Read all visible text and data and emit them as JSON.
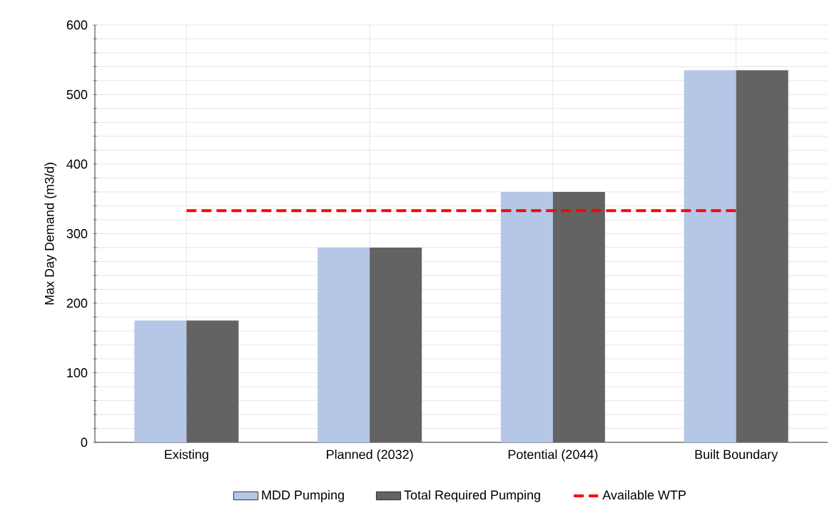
{
  "chart_data": {
    "type": "bar",
    "ylabel": "Max Day Demand (m3/d)",
    "categories": [
      "Existing",
      "Planned (2032)",
      "Potential (2044)",
      "Built Boundary"
    ],
    "series": [
      {
        "name": "MDD Pumping",
        "color": "#b4c7e7",
        "values": [
          175,
          280,
          360,
          535
        ]
      },
      {
        "name": "Total Required Pumping",
        "color": "#636363",
        "values": [
          175,
          280,
          360,
          535
        ]
      },
      {
        "name": "Available WTP",
        "color": "#ff0000",
        "type": "line",
        "line_style": "dashed",
        "values": [
          333,
          333,
          333,
          333
        ]
      }
    ],
    "ylim": [
      0,
      600
    ],
    "yticks": [
      0,
      {
        "value": 20,
        "label": null
      },
      {
        "value": 40,
        "label": null
      },
      {
        "value": 60,
        "label": null
      },
      {
        "value": 80,
        "label": null
      },
      100,
      {
        "value": 120,
        "label": null
      },
      {
        "value": 140,
        "label": null
      },
      {
        "value": 160,
        "label": null
      },
      {
        "value": 180,
        "label": null
      },
      200,
      {
        "value": 220,
        "label": null
      },
      {
        "value": 240,
        "label": null
      },
      {
        "value": 260,
        "label": null
      },
      {
        "value": 280,
        "label": null
      },
      300,
      {
        "value": 320,
        "label": null
      },
      {
        "value": 340,
        "label": null
      },
      {
        "value": 360,
        "label": null
      },
      {
        "value": 380,
        "label": null
      },
      400,
      {
        "value": 420,
        "label": null
      },
      {
        "value": 440,
        "label": null
      },
      {
        "value": 460,
        "label": null
      },
      {
        "value": 480,
        "label": null
      },
      500,
      {
        "value": 520,
        "label": null
      },
      {
        "value": 540,
        "label": null
      },
      {
        "value": 560,
        "label": null
      },
      {
        "value": 580,
        "label": null
      },
      600
    ],
    "grid": true,
    "legend": "bottom"
  }
}
